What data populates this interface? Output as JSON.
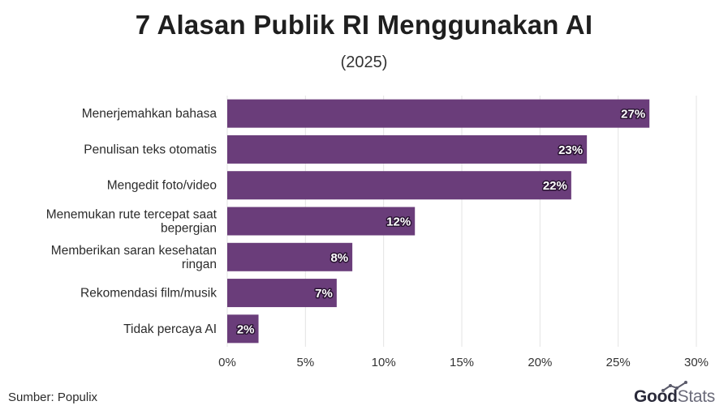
{
  "title": "7 Alasan Publik RI Menggunakan AI",
  "subtitle": "(2025)",
  "source": "Sumber: Populix",
  "logo": {
    "part1": "Good",
    "part2": "Stats"
  },
  "colors": {
    "bar": "#6a3d7a",
    "grid": "#e3e3e3",
    "text": "#222222"
  },
  "chart_data": {
    "type": "bar",
    "orientation": "horizontal",
    "categories": [
      "Menerjemahkan bahasa",
      "Penulisan teks otomatis",
      "Mengedit foto/video",
      "Menemukan rute tercepat saat bepergian",
      "Memberikan saran kesehatan ringan",
      "Rekomendasi film/musik",
      "Tidak percaya AI"
    ],
    "category_lines": [
      [
        "Menerjemahkan bahasa"
      ],
      [
        "Penulisan teks otomatis"
      ],
      [
        "Mengedit foto/video"
      ],
      [
        "Menemukan rute tercepat saat",
        "bepergian"
      ],
      [
        "Memberikan saran kesehatan",
        "ringan"
      ],
      [
        "Rekomendasi film/musik"
      ],
      [
        "Tidak percaya AI"
      ]
    ],
    "values": [
      27,
      23,
      22,
      12,
      8,
      7,
      2
    ],
    "value_labels": [
      "27%",
      "23%",
      "22%",
      "12%",
      "8%",
      "7%",
      "2%"
    ],
    "xlim": [
      0,
      30
    ],
    "xticks": [
      0,
      5,
      10,
      15,
      20,
      25,
      30
    ],
    "xtick_labels": [
      "0%",
      "5%",
      "10%",
      "15%",
      "20%",
      "25%",
      "30%"
    ],
    "grid": true
  }
}
